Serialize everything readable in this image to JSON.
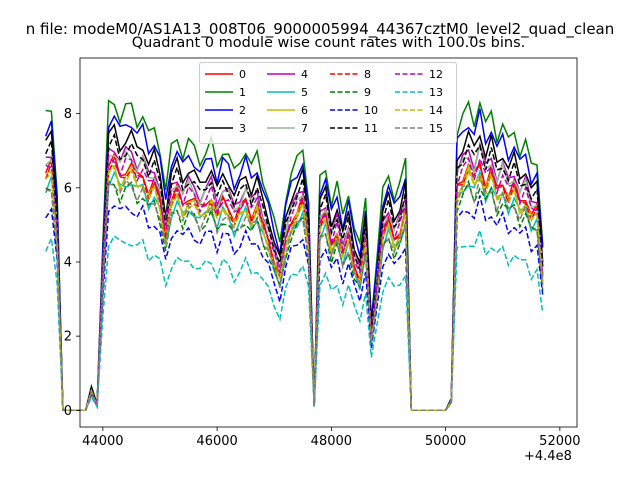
{
  "figure": {
    "suptitle": "n file: modeM0/AS1A13_008T06_9000005994_44367cztM0_level2_quad_clean"
  },
  "chart_data": {
    "type": "line",
    "title": "Quadrant 0 module wise count rates with 100.0s bins.",
    "xlabel": "",
    "ylabel": "",
    "x_offset_label": "+4.4e8",
    "xlim": [
      43600,
      52300
    ],
    "ylim": [
      -0.45,
      9.5
    ],
    "x_ticks": [
      44000,
      46000,
      48000,
      50000,
      52000
    ],
    "x_tick_labels": [
      "44000",
      "46000",
      "48000",
      "50000",
      "52000"
    ],
    "y_ticks": [
      0,
      2,
      4,
      6,
      8
    ],
    "y_tick_labels": [
      "0",
      "2",
      "4",
      "6",
      "8"
    ],
    "legend_placement": "upper center",
    "series": [
      {
        "name": "0",
        "color": "#ff0000",
        "dash": "solid",
        "level": 6.6
      },
      {
        "name": "1",
        "color": "#008000",
        "dash": "solid",
        "level": 8.2
      },
      {
        "name": "2",
        "color": "#0000ff",
        "dash": "solid",
        "level": 7.8
      },
      {
        "name": "3",
        "color": "#000000",
        "dash": "solid",
        "level": 7.4
      },
      {
        "name": "4",
        "color": "#bf00bf",
        "dash": "solid",
        "level": 7.0
      },
      {
        "name": "5",
        "color": "#00bfbf",
        "dash": "solid",
        "level": 6.2
      },
      {
        "name": "6",
        "color": "#bfbf00",
        "dash": "solid",
        "level": 6.4
      },
      {
        "name": "7",
        "color": "#8fbf8f",
        "dash": "solid",
        "level": 6.9
      },
      {
        "name": "8",
        "color": "#ff0000",
        "dash": "dashed",
        "level": 6.5
      },
      {
        "name": "9",
        "color": "#008000",
        "dash": "dashed",
        "level": 6.0
      },
      {
        "name": "10",
        "color": "#0000ff",
        "dash": "dashed",
        "level": 5.5
      },
      {
        "name": "11",
        "color": "#000000",
        "dash": "dashed",
        "level": 7.1
      },
      {
        "name": "12",
        "color": "#bf00bf",
        "dash": "dashed",
        "level": 6.7
      },
      {
        "name": "13",
        "color": "#00bfbf",
        "dash": "dashed",
        "level": 4.6
      },
      {
        "name": "14",
        "color": "#bfbf00",
        "dash": "dashed",
        "level": 6.3
      },
      {
        "name": "15",
        "color": "#7f7f7f",
        "dash": "dashed",
        "level": 6.1
      }
    ],
    "shape": {
      "x": [
        43000,
        43100,
        43200,
        43300,
        43400,
        43500,
        43600,
        43700,
        43800,
        43900,
        44000,
        44100,
        44200,
        44300,
        44400,
        44500,
        44600,
        44700,
        44800,
        44900,
        45000,
        45100,
        45200,
        45300,
        45400,
        45500,
        45600,
        45700,
        45800,
        45900,
        46000,
        46100,
        46200,
        46300,
        46400,
        46500,
        46600,
        46700,
        46800,
        46900,
        47000,
        47100,
        47200,
        47300,
        47400,
        47500,
        47600,
        47700,
        47800,
        47900,
        48000,
        48100,
        48200,
        48300,
        48400,
        48500,
        48600,
        48700,
        48800,
        48900,
        49000,
        49100,
        49200,
        49300,
        49400,
        49500,
        49600,
        49700,
        49800,
        49900,
        50000,
        50100,
        50200,
        50300,
        50400,
        50500,
        50600,
        50700,
        50800,
        50900,
        51000,
        51100,
        51200,
        51300,
        51400,
        51500,
        51600,
        51700
      ],
      "factor": [
        0.97,
        1.0,
        0.72,
        0,
        0,
        0,
        0,
        0,
        0.08,
        0.02,
        0.55,
        1.0,
        1.02,
        0.96,
        0.99,
        1.0,
        0.95,
        0.97,
        0.9,
        0.93,
        0.86,
        0.72,
        0.86,
        0.9,
        0.84,
        0.88,
        0.86,
        0.82,
        0.85,
        0.88,
        0.8,
        0.86,
        0.84,
        0.78,
        0.82,
        0.86,
        0.8,
        0.84,
        0.76,
        0.7,
        0.62,
        0.55,
        0.7,
        0.78,
        0.82,
        0.86,
        0.7,
        0.02,
        0.76,
        0.8,
        0.68,
        0.74,
        0.64,
        0.72,
        0.6,
        0.54,
        0.7,
        0.3,
        0.5,
        0.72,
        0.78,
        0.7,
        0.74,
        0.82,
        0,
        0,
        0,
        0,
        0,
        0,
        0,
        0.04,
        0.92,
        0.96,
        1.0,
        0.95,
        1.02,
        0.93,
        0.98,
        0.9,
        0.94,
        0.88,
        0.92,
        0.85,
        0.88,
        0.8,
        0.82,
        0.55
      ]
    }
  }
}
